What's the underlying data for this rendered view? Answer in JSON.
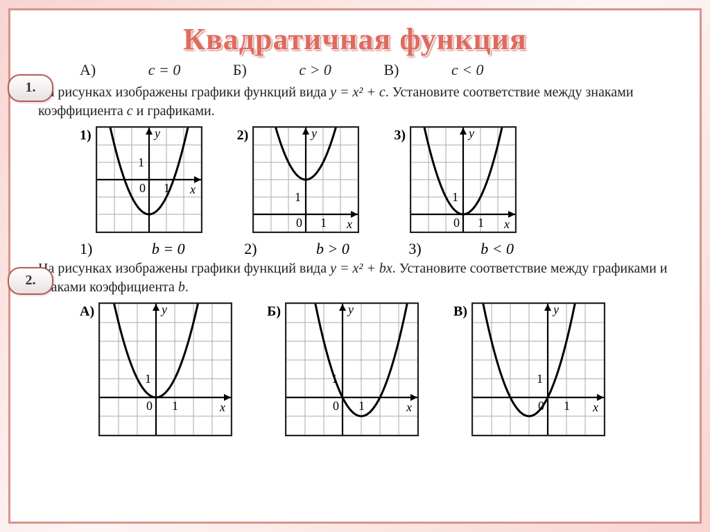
{
  "page_title": "Квадратичная функция",
  "title_color": "#e06a5f",
  "border_color": "#d8938a",
  "section1": {
    "badge": "1.",
    "options": [
      {
        "label": "А)",
        "expr": "c = 0"
      },
      {
        "label": "Б)",
        "expr": "c > 0"
      },
      {
        "label": "В)",
        "expr": "c < 0"
      }
    ],
    "description_a": "На рисунках изображены графики функций вида ",
    "description_formula": "y = x² + c",
    "description_b": ". Установите соответствие между знаками коэффициента ",
    "description_var": "c",
    "description_c": " и графиками.",
    "charts": [
      {
        "label": "1)",
        "type": "parabola",
        "vertex_x": 0,
        "vertex_y": -2,
        "width": 6,
        "height": 6,
        "xlim": [
          -3,
          3
        ],
        "ylim": [
          -3,
          3
        ],
        "cell": 25,
        "axis_label_x": "x",
        "axis_label_y": "y",
        "one_x": 1,
        "one_y": 1
      },
      {
        "label": "2)",
        "type": "parabola",
        "vertex_x": 0,
        "vertex_y": 2,
        "width": 6,
        "height": 6,
        "xlim": [
          -3,
          3
        ],
        "ylim": [
          -1,
          5
        ],
        "cell": 25,
        "axis_label_x": "x",
        "axis_label_y": "y",
        "one_x": 1,
        "one_y": 1
      },
      {
        "label": "3)",
        "type": "parabola",
        "vertex_x": 0,
        "vertex_y": 0,
        "width": 6,
        "height": 6,
        "xlim": [
          -3,
          3
        ],
        "ylim": [
          -1,
          5
        ],
        "cell": 25,
        "axis_label_x": "x",
        "axis_label_y": "y",
        "one_x": 1,
        "one_y": 1
      }
    ]
  },
  "section2": {
    "badge": "2.",
    "options": [
      {
        "label": "1)",
        "expr": "b = 0"
      },
      {
        "label": "2)",
        "expr": "b > 0"
      },
      {
        "label": "3)",
        "expr": "b < 0"
      }
    ],
    "description_a": "На рисунках изображены графики функций вида ",
    "description_formula": "y = x² + bx",
    "description_b": ". Установите соответствие между графиками и знаками коэффициента ",
    "description_var": "b",
    "description_c": ".",
    "charts": [
      {
        "label": "А)",
        "type": "parabola",
        "vertex_x": 0,
        "vertex_y": 0,
        "width": 7,
        "height": 7,
        "xlim": [
          -3,
          4
        ],
        "ylim": [
          -2,
          5
        ],
        "cell": 27,
        "axis_label_x": "x",
        "axis_label_y": "y",
        "one_x": 1,
        "one_y": 1
      },
      {
        "label": "Б)",
        "type": "parabola",
        "vertex_x": 1,
        "vertex_y": -1,
        "width": 7,
        "height": 7,
        "xlim": [
          -3,
          4
        ],
        "ylim": [
          -2,
          5
        ],
        "cell": 27,
        "axis_label_x": "x",
        "axis_label_y": "y",
        "one_x": 1,
        "one_y": 1
      },
      {
        "label": "В)",
        "type": "parabola",
        "vertex_x": -1,
        "vertex_y": -1,
        "width": 7,
        "height": 7,
        "xlim": [
          -4,
          3
        ],
        "ylim": [
          -2,
          5
        ],
        "cell": 27,
        "axis_label_x": "x",
        "axis_label_y": "y",
        "one_x": 1,
        "one_y": 1
      }
    ]
  },
  "style": {
    "grid_color": "#aaaaaa",
    "axis_color": "#000000",
    "curve_color": "#000000",
    "curve_width": 3,
    "background": "#ffffff"
  }
}
